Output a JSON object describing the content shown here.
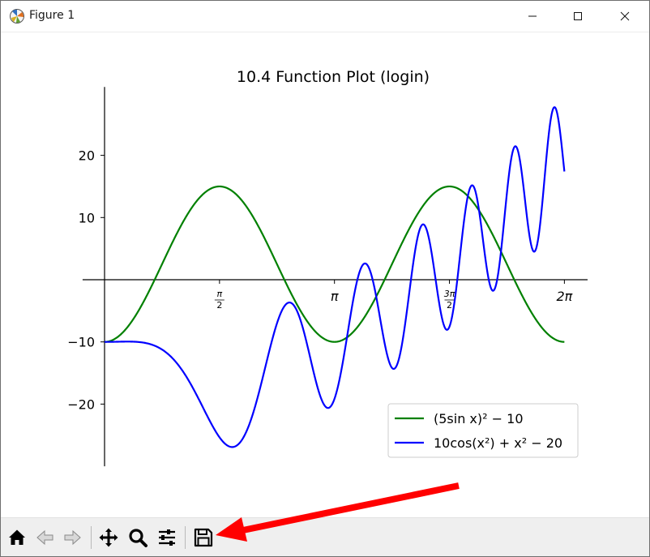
{
  "window": {
    "title": "Figure 1"
  },
  "chart_data": {
    "type": "line",
    "title": "10.4 Function Plot (login)",
    "xlabel": "",
    "ylabel": "",
    "xlim": [
      0,
      6.6
    ],
    "ylim": [
      -30,
      31
    ],
    "x_ticks": [
      {
        "value": 1.5708,
        "label_num": "π",
        "label_den": "2"
      },
      {
        "value": 3.1416,
        "label": "π"
      },
      {
        "value": 4.7124,
        "label_num": "3π",
        "label_den": "2"
      },
      {
        "value": 6.2832,
        "label": "2π"
      }
    ],
    "y_ticks": [
      {
        "value": -20,
        "label": "−20"
      },
      {
        "value": -10,
        "label": "−10"
      },
      {
        "value": 10,
        "label": "10"
      },
      {
        "value": 20,
        "label": "20"
      }
    ],
    "spines": "centered at origin (left and bottom axes through zero)",
    "grid": false,
    "legend_placement": "lower right",
    "series": [
      {
        "name": "(5sin x)² − 10",
        "expression": "(5*sin(x))^2 - 10",
        "color": "#008000",
        "x_range": [
          0,
          6.2832
        ],
        "points": [
          [
            0,
            -10
          ],
          [
            0.7854,
            2.5
          ],
          [
            1.5708,
            15
          ],
          [
            2.3562,
            2.5
          ],
          [
            3.1416,
            -10
          ],
          [
            3.927,
            2.5
          ],
          [
            4.7124,
            15
          ],
          [
            5.4978,
            2.5
          ],
          [
            6.2832,
            -10
          ]
        ]
      },
      {
        "name": "10cos(x²) + x² − 20",
        "expression": "10*cos(x^2) + x^2 - 20",
        "color": "#0000ff",
        "x_range": [
          0,
          6.2832
        ],
        "points": [
          [
            0,
            -10
          ],
          [
            1,
            -13.6
          ],
          [
            1.77,
            -26.9
          ],
          [
            2.5,
            -3.7
          ],
          [
            3.07,
            -20.3
          ],
          [
            3.55,
            2.5
          ],
          [
            3.98,
            -14.3
          ],
          [
            4.35,
            8.9
          ],
          [
            4.7,
            -7.8
          ],
          [
            5.02,
            15.1
          ],
          [
            5.3,
            -1.3
          ],
          [
            5.6,
            21.4
          ],
          [
            5.84,
            4.5
          ],
          [
            6.1,
            27.9
          ],
          [
            6.2832,
            17.6
          ]
        ]
      }
    ]
  },
  "toolbar": {
    "buttons": [
      {
        "name": "home",
        "icon": "home-icon"
      },
      {
        "name": "back",
        "icon": "back-arrow-icon"
      },
      {
        "name": "forward",
        "icon": "forward-arrow-icon"
      },
      {
        "name": "pan",
        "icon": "move-icon"
      },
      {
        "name": "zoom",
        "icon": "magnifier-icon"
      },
      {
        "name": "configure",
        "icon": "sliders-icon"
      },
      {
        "name": "save",
        "icon": "floppy-disk-icon"
      }
    ]
  },
  "annotation": {
    "color": "#ff0000",
    "target": "save button"
  }
}
